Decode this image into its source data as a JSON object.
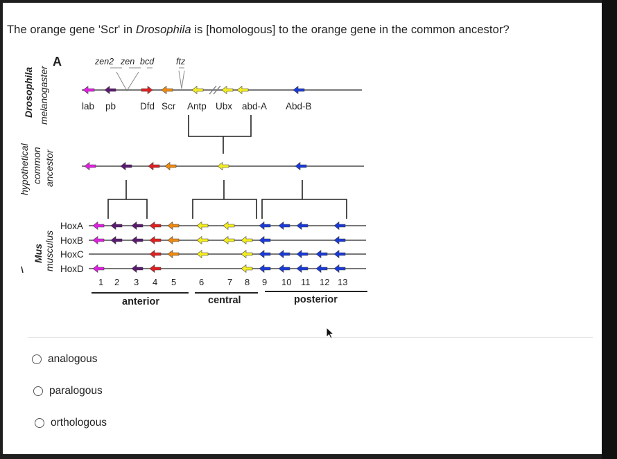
{
  "question": {
    "before": "The orange gene 'Scr' in ",
    "species": "Drosophila",
    "after": " is [homologous] to the orange gene in the common ancestor?"
  },
  "diagram": {
    "panel_label": "A",
    "labels_left": {
      "drosophila_1": "Drosophila",
      "drosophila_2": "melanogaster",
      "ancestor_1": "hypothetical",
      "ancestor_2": "common",
      "ancestor_3": "ancestor",
      "mus_1": "Mus",
      "mus_2": "musculus"
    },
    "top_genes": {
      "zen2": "zen2",
      "zen": "zen",
      "bcd": "bcd",
      "ftz": "ftz"
    },
    "drosophila_genes": [
      "lab",
      "pb",
      "Dfd",
      "Scr",
      "Antp",
      "Ubx",
      "abd-A",
      "Abd-B"
    ],
    "mouse_clusters": [
      "HoxA",
      "HoxB",
      "HoxC",
      "HoxD"
    ],
    "paralog_numbers": [
      "1",
      "2",
      "3",
      "4",
      "5",
      "6",
      "7",
      "8",
      "9",
      "10",
      "11",
      "12",
      "13"
    ],
    "regions": [
      "anterior",
      "central",
      "posterior"
    ],
    "colors": {
      "magenta": "#e020e0",
      "purple": "#5a1a70",
      "red": "#e02020",
      "orange": "#f08a10",
      "yellow": "#f4ee20",
      "blue": "#1a3ad8"
    }
  },
  "options": [
    "analogous",
    "paralogous",
    "orthologous"
  ]
}
